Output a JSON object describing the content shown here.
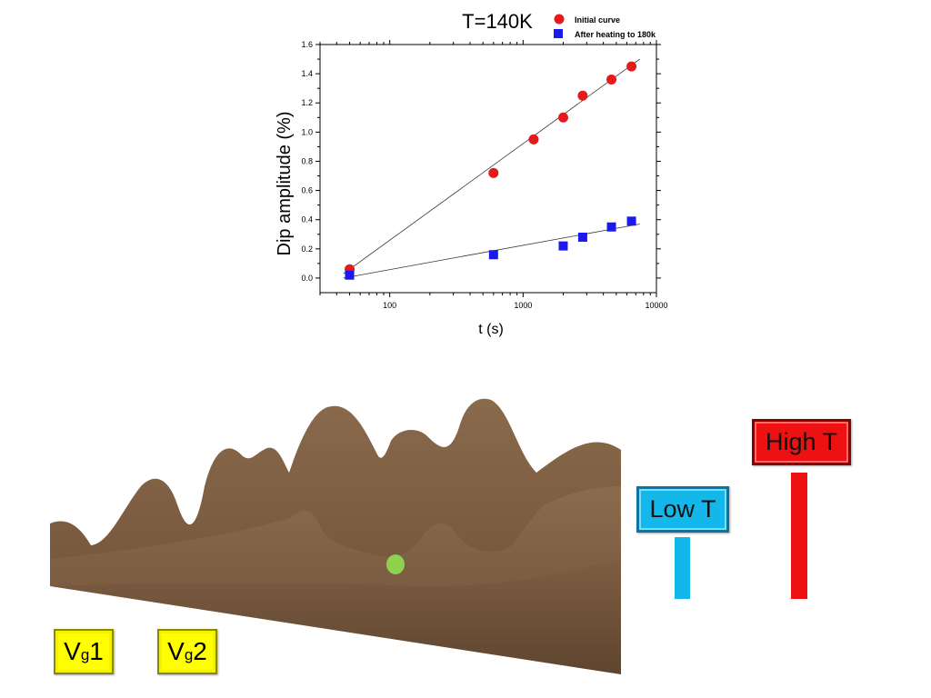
{
  "chart_data": {
    "type": "scatter",
    "title": "T=140K",
    "xlabel": "t (s)",
    "ylabel": "Dip amplitude (%)",
    "xscale": "log",
    "xlim": [
      30,
      10000
    ],
    "ylim": [
      -0.1,
      1.6
    ],
    "xticks": [
      100,
      1000,
      10000
    ],
    "xtick_labels": [
      "100",
      "1000",
      "10000"
    ],
    "yticks": [
      0.0,
      0.2,
      0.4,
      0.6,
      0.8,
      1.0,
      1.2,
      1.4,
      1.6
    ],
    "ytick_labels": [
      "0.0",
      "0.2",
      "0.4",
      "0.6",
      "0.8",
      "1.0",
      "1.2",
      "1.4",
      "1.6"
    ],
    "grid": false,
    "legend_position": "top-right",
    "series": [
      {
        "name": "Initial curve",
        "marker": "circle",
        "color": "#e41a1c",
        "x": [
          50,
          600,
          1200,
          2000,
          2800,
          4600,
          6500
        ],
        "y": [
          0.06,
          0.72,
          0.95,
          1.1,
          1.25,
          1.36,
          1.45
        ],
        "fit": {
          "x": [
            45,
            7500
          ],
          "y": [
            0.03,
            1.5
          ]
        }
      },
      {
        "name": "After heating to 180k",
        "marker": "square",
        "color": "#1a1aee",
        "x": [
          50,
          600,
          2000,
          2800,
          4600,
          6500
        ],
        "y": [
          0.02,
          0.16,
          0.22,
          0.28,
          0.35,
          0.39
        ],
        "fit": {
          "x": [
            45,
            7500
          ],
          "y": [
            0.0,
            0.37
          ]
        }
      }
    ]
  },
  "illustration": {
    "terrain_color": "#7a5a3e",
    "ball_color": "#8dd14f",
    "buttons": [
      {
        "main": "V",
        "sub": "g",
        "suffix": "1",
        "color": "#ffff00"
      },
      {
        "main": "V",
        "sub": "g",
        "suffix": "2",
        "color": "#ffff00"
      }
    ],
    "low_t": {
      "label": "Low T",
      "color": "#13b7ea"
    },
    "high_t": {
      "label": "High T",
      "color": "#ee1111"
    }
  }
}
